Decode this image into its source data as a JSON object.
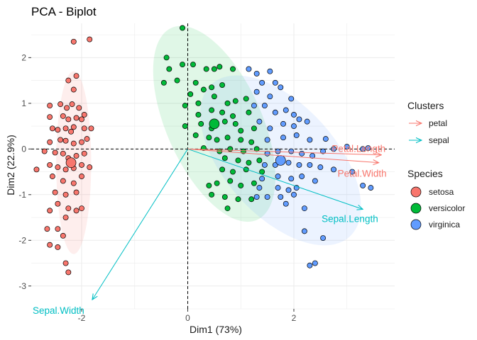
{
  "chart_data": {
    "type": "scatter",
    "title": "PCA - Biplot",
    "xlabel": "Dim1 (73%)",
    "ylabel": "Dim2 (22.9%)",
    "xlim": [
      -2.95,
      3.9
    ],
    "ylim": [
      -3.5,
      2.75
    ],
    "x_ticks": [
      -2,
      0,
      2
    ],
    "y_ticks": [
      -3,
      -2,
      -1,
      0,
      1,
      2
    ],
    "grid": true,
    "reference_lines": {
      "x": 0,
      "y": 0,
      "style": "dashed"
    },
    "species_legend_title": "Species",
    "clusters_legend_title": "Clusters",
    "legend_position": "right",
    "species": [
      {
        "name": "setosa",
        "color": "#F8766D",
        "centroid": [
          -2.2,
          -0.3
        ],
        "ellipse": {
          "cx": -2.15,
          "cy": -0.3,
          "rx": 0.33,
          "ry": 2.0,
          "angle": 0
        },
        "points": [
          [
            -2.15,
            2.35
          ],
          [
            -1.85,
            2.4
          ],
          [
            -2.1,
            1.6
          ],
          [
            -2.25,
            1.5
          ],
          [
            -2.15,
            1.3
          ],
          [
            -2.6,
            0.95
          ],
          [
            -2.4,
            0.98
          ],
          [
            -2.28,
            0.9
          ],
          [
            -2.18,
            0.98
          ],
          [
            -2.05,
            0.9
          ],
          [
            -2.6,
            0.7
          ],
          [
            -2.35,
            0.72
          ],
          [
            -2.25,
            0.65
          ],
          [
            -2.1,
            0.68
          ],
          [
            -2.0,
            0.65
          ],
          [
            -1.95,
            0.75
          ],
          [
            -2.55,
            0.45
          ],
          [
            -2.45,
            0.42
          ],
          [
            -2.3,
            0.45
          ],
          [
            -2.2,
            0.38
          ],
          [
            -2.15,
            0.48
          ],
          [
            -1.95,
            0.45
          ],
          [
            -1.82,
            0.45
          ],
          [
            -2.6,
            0.15
          ],
          [
            -2.4,
            0.2
          ],
          [
            -2.3,
            0.18
          ],
          [
            -2.15,
            0.12
          ],
          [
            -2.0,
            0.15
          ],
          [
            -1.9,
            0.22
          ],
          [
            -2.7,
            -0.05
          ],
          [
            -2.5,
            -0.08
          ],
          [
            -2.35,
            -0.1
          ],
          [
            -2.25,
            -0.2
          ],
          [
            -2.1,
            -0.15
          ],
          [
            -1.95,
            -0.1
          ],
          [
            -2.85,
            -0.45
          ],
          [
            -2.6,
            -0.35
          ],
          [
            -2.45,
            -0.4
          ],
          [
            -2.3,
            -0.45
          ],
          [
            -2.15,
            -0.42
          ],
          [
            -2.0,
            -0.35
          ],
          [
            -1.85,
            -0.4
          ],
          [
            -2.55,
            -0.6
          ],
          [
            -2.35,
            -0.7
          ],
          [
            -2.15,
            -0.75
          ],
          [
            -2.0,
            -0.6
          ],
          [
            -2.5,
            -0.95
          ],
          [
            -2.3,
            -1.0
          ],
          [
            -2.1,
            -0.95
          ],
          [
            -2.6,
            -1.35
          ],
          [
            -2.45,
            -1.2
          ],
          [
            -2.25,
            -1.3
          ],
          [
            -2.1,
            -1.35
          ],
          [
            -2.0,
            -1.3
          ],
          [
            -2.3,
            -1.5
          ],
          [
            -2.65,
            -1.75
          ],
          [
            -2.45,
            -1.75
          ],
          [
            -2.35,
            -1.9
          ],
          [
            -2.6,
            -2.1
          ],
          [
            -2.45,
            -2.15
          ],
          [
            -2.3,
            -2.5
          ],
          [
            -2.25,
            -2.7
          ]
        ]
      },
      {
        "name": "versicolor",
        "color": "#00BA38",
        "centroid": [
          0.5,
          0.55
        ],
        "ellipse": {
          "cx": 0.5,
          "cy": 0.55,
          "rx": 0.9,
          "ry": 2.3,
          "angle": -24
        },
        "points": [
          [
            -0.1,
            2.65
          ],
          [
            -0.4,
            2.0
          ],
          [
            -0.35,
            1.75
          ],
          [
            -0.1,
            1.85
          ],
          [
            0.1,
            1.85
          ],
          [
            0.35,
            1.75
          ],
          [
            0.5,
            1.75
          ],
          [
            0.6,
            1.8
          ],
          [
            0.85,
            1.75
          ],
          [
            -0.45,
            1.45
          ],
          [
            -0.2,
            1.5
          ],
          [
            0.15,
            1.45
          ],
          [
            0.3,
            1.3
          ],
          [
            0.45,
            1.35
          ],
          [
            0.65,
            1.4
          ],
          [
            0.05,
            1.2
          ],
          [
            0.2,
            1.0
          ],
          [
            0.5,
            1.15
          ],
          [
            0.75,
            1.0
          ],
          [
            0.9,
            1.05
          ],
          [
            1.1,
            1.1
          ],
          [
            -0.05,
            0.95
          ],
          [
            0.2,
            0.75
          ],
          [
            0.45,
            0.85
          ],
          [
            0.65,
            0.8
          ],
          [
            0.85,
            0.72
          ],
          [
            1.15,
            0.8
          ],
          [
            -0.05,
            0.5
          ],
          [
            0.25,
            0.55
          ],
          [
            0.45,
            0.45
          ],
          [
            0.7,
            0.6
          ],
          [
            0.9,
            0.55
          ],
          [
            1.0,
            0.4
          ],
          [
            1.25,
            0.45
          ],
          [
            0.15,
            0.3
          ],
          [
            0.4,
            0.25
          ],
          [
            0.55,
            0.2
          ],
          [
            0.75,
            0.25
          ],
          [
            1.0,
            0.2
          ],
          [
            1.2,
            0.15
          ],
          [
            0.3,
            0.02
          ],
          [
            0.6,
            -0.05
          ],
          [
            0.8,
            0.0
          ],
          [
            1.05,
            -0.05
          ],
          [
            1.3,
            0.0
          ],
          [
            0.7,
            -0.2
          ],
          [
            0.95,
            -0.25
          ],
          [
            1.15,
            -0.3
          ],
          [
            1.35,
            -0.25
          ],
          [
            0.65,
            -0.45
          ],
          [
            0.85,
            -0.5
          ],
          [
            1.1,
            -0.45
          ],
          [
            1.4,
            -0.5
          ],
          [
            0.55,
            -0.75
          ],
          [
            0.8,
            -0.7
          ],
          [
            1.0,
            -0.8
          ],
          [
            1.25,
            -0.75
          ],
          [
            0.4,
            -0.8
          ],
          [
            0.45,
            -1.0
          ],
          [
            0.7,
            -1.05
          ],
          [
            0.95,
            -1.1
          ],
          [
            1.2,
            -1.1
          ],
          [
            0.75,
            -1.3
          ]
        ]
      },
      {
        "name": "virginica",
        "color": "#619CFF",
        "centroid": [
          1.75,
          -0.25
        ],
        "ellipse": {
          "cx": 1.75,
          "cy": -0.25,
          "rx": 1.05,
          "ry": 2.25,
          "angle": -42
        },
        "points": [
          [
            1.15,
            1.75
          ],
          [
            1.3,
            1.65
          ],
          [
            1.55,
            1.7
          ],
          [
            1.4,
            1.45
          ],
          [
            1.65,
            1.45
          ],
          [
            1.3,
            1.25
          ],
          [
            1.55,
            1.15
          ],
          [
            1.75,
            1.35
          ],
          [
            1.95,
            1.1
          ],
          [
            1.25,
            0.95
          ],
          [
            1.45,
            0.95
          ],
          [
            1.65,
            0.8
          ],
          [
            1.85,
            0.85
          ],
          [
            2.0,
            0.75
          ],
          [
            2.1,
            0.65
          ],
          [
            1.35,
            0.6
          ],
          [
            1.55,
            0.45
          ],
          [
            1.8,
            0.55
          ],
          [
            2.0,
            0.5
          ],
          [
            2.25,
            0.6
          ],
          [
            1.5,
            0.2
          ],
          [
            1.8,
            0.25
          ],
          [
            2.05,
            0.3
          ],
          [
            2.3,
            0.2
          ],
          [
            2.6,
            0.22
          ],
          [
            1.5,
            -0.1
          ],
          [
            1.7,
            -0.05
          ],
          [
            1.95,
            -0.05
          ],
          [
            2.15,
            -0.1
          ],
          [
            2.35,
            -0.15
          ],
          [
            2.55,
            -0.05
          ],
          [
            2.75,
            0.0
          ],
          [
            3.0,
            0.05
          ],
          [
            3.3,
            0.0
          ],
          [
            3.4,
            0.02
          ],
          [
            1.45,
            -0.35
          ],
          [
            1.65,
            -0.35
          ],
          [
            1.9,
            -0.3
          ],
          [
            2.1,
            -0.35
          ],
          [
            2.3,
            -0.35
          ],
          [
            2.5,
            -0.4
          ],
          [
            2.75,
            -0.45
          ],
          [
            3.1,
            -0.5
          ],
          [
            1.4,
            -0.65
          ],
          [
            1.7,
            -0.6
          ],
          [
            1.95,
            -0.65
          ],
          [
            2.15,
            -0.6
          ],
          [
            2.4,
            -0.7
          ],
          [
            1.35,
            -0.85
          ],
          [
            1.7,
            -0.85
          ],
          [
            1.9,
            -0.9
          ],
          [
            2.05,
            -0.85
          ],
          [
            3.3,
            -0.8
          ],
          [
            3.45,
            -0.85
          ],
          [
            1.3,
            -1.05
          ],
          [
            1.5,
            -1.05
          ],
          [
            1.75,
            -1.05
          ],
          [
            2.0,
            -1.0
          ],
          [
            1.85,
            -1.2
          ],
          [
            2.2,
            -1.3
          ],
          [
            2.2,
            -1.8
          ],
          [
            2.55,
            -1.95
          ],
          [
            2.3,
            -2.55
          ],
          [
            2.4,
            -2.5
          ]
        ]
      }
    ],
    "variables": [
      {
        "name": "Sepal.Length",
        "cluster": "sepal",
        "x": 3.3,
        "y": -1.32
      },
      {
        "name": "Sepal.Width",
        "cluster": "sepal",
        "x": -1.8,
        "y": -3.3
      },
      {
        "name": "Petal.Length",
        "cluster": "petal",
        "x": 3.65,
        "y": -0.13
      },
      {
        "name": "Petal.Width",
        "cluster": "petal",
        "x": 3.6,
        "y": -0.3
      }
    ],
    "clusters": [
      {
        "name": "petal",
        "color": "#F8766D"
      },
      {
        "name": "sepal",
        "color": "#00BFC4"
      }
    ]
  }
}
